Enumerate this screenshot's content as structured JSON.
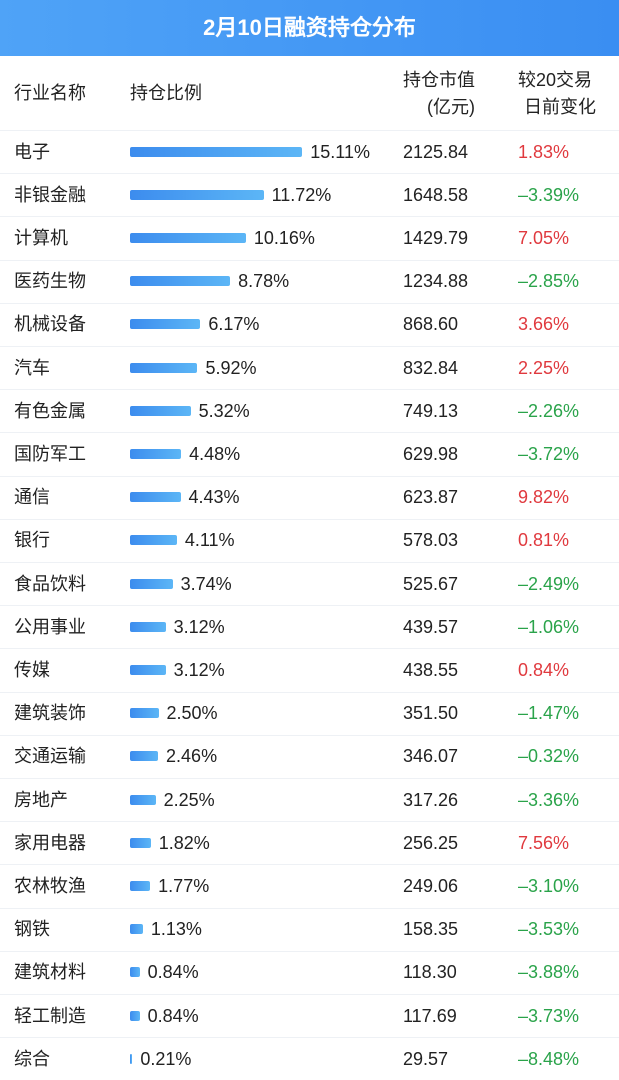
{
  "title": "2月10日融资持仓分布",
  "header": {
    "industry": "行业名称",
    "share": "持仓比例",
    "value": [
      "持仓市值",
      "(亿元)"
    ],
    "change": [
      "较20交易",
      "日前变化"
    ]
  },
  "rows": [
    {
      "industry": "电子",
      "share": 15.11,
      "share_label": "15.11%",
      "value": "2125.84",
      "change": "1.83%"
    },
    {
      "industry": "非银金融",
      "share": 11.72,
      "share_label": "11.72%",
      "value": "1648.58",
      "change": "–3.39%"
    },
    {
      "industry": "计算机",
      "share": 10.16,
      "share_label": "10.16%",
      "value": "1429.79",
      "change": "7.05%"
    },
    {
      "industry": "医药生物",
      "share": 8.78,
      "share_label": "8.78%",
      "value": "1234.88",
      "change": "–2.85%"
    },
    {
      "industry": "机械设备",
      "share": 6.17,
      "share_label": "6.17%",
      "value": "868.60",
      "change": "3.66%"
    },
    {
      "industry": "汽车",
      "share": 5.92,
      "share_label": "5.92%",
      "value": "832.84",
      "change": "2.25%"
    },
    {
      "industry": "有色金属",
      "share": 5.32,
      "share_label": "5.32%",
      "value": "749.13",
      "change": "–2.26%"
    },
    {
      "industry": "国防军工",
      "share": 4.48,
      "share_label": "4.48%",
      "value": "629.98",
      "change": "–3.72%"
    },
    {
      "industry": "通信",
      "share": 4.43,
      "share_label": "4.43%",
      "value": "623.87",
      "change": "9.82%"
    },
    {
      "industry": "银行",
      "share": 4.11,
      "share_label": "4.11%",
      "value": "578.03",
      "change": "0.81%"
    },
    {
      "industry": "食品饮料",
      "share": 3.74,
      "share_label": "3.74%",
      "value": "525.67",
      "change": "–2.49%"
    },
    {
      "industry": "公用事业",
      "share": 3.12,
      "share_label": "3.12%",
      "value": "439.57",
      "change": "–1.06%"
    },
    {
      "industry": "传媒",
      "share": 3.12,
      "share_label": "3.12%",
      "value": "438.55",
      "change": "0.84%"
    },
    {
      "industry": "建筑装饰",
      "share": 2.5,
      "share_label": "2.50%",
      "value": "351.50",
      "change": "–1.47%"
    },
    {
      "industry": "交通运输",
      "share": 2.46,
      "share_label": "2.46%",
      "value": "346.07",
      "change": "–0.32%"
    },
    {
      "industry": "房地产",
      "share": 2.25,
      "share_label": "2.25%",
      "value": "317.26",
      "change": "–3.36%"
    },
    {
      "industry": "家用电器",
      "share": 1.82,
      "share_label": "1.82%",
      "value": "256.25",
      "change": "7.56%"
    },
    {
      "industry": "农林牧渔",
      "share": 1.77,
      "share_label": "1.77%",
      "value": "249.06",
      "change": "–3.10%"
    },
    {
      "industry": "钢铁",
      "share": 1.13,
      "share_label": "1.13%",
      "value": "158.35",
      "change": "–3.53%"
    },
    {
      "industry": "建筑材料",
      "share": 0.84,
      "share_label": "0.84%",
      "value": "118.30",
      "change": "–3.88%"
    },
    {
      "industry": "轻工制造",
      "share": 0.84,
      "share_label": "0.84%",
      "value": "117.69",
      "change": "–3.73%"
    },
    {
      "industry": "综合",
      "share": 0.21,
      "share_label": "0.21%",
      "value": "29.57",
      "change": "–8.48%"
    }
  ]
}
